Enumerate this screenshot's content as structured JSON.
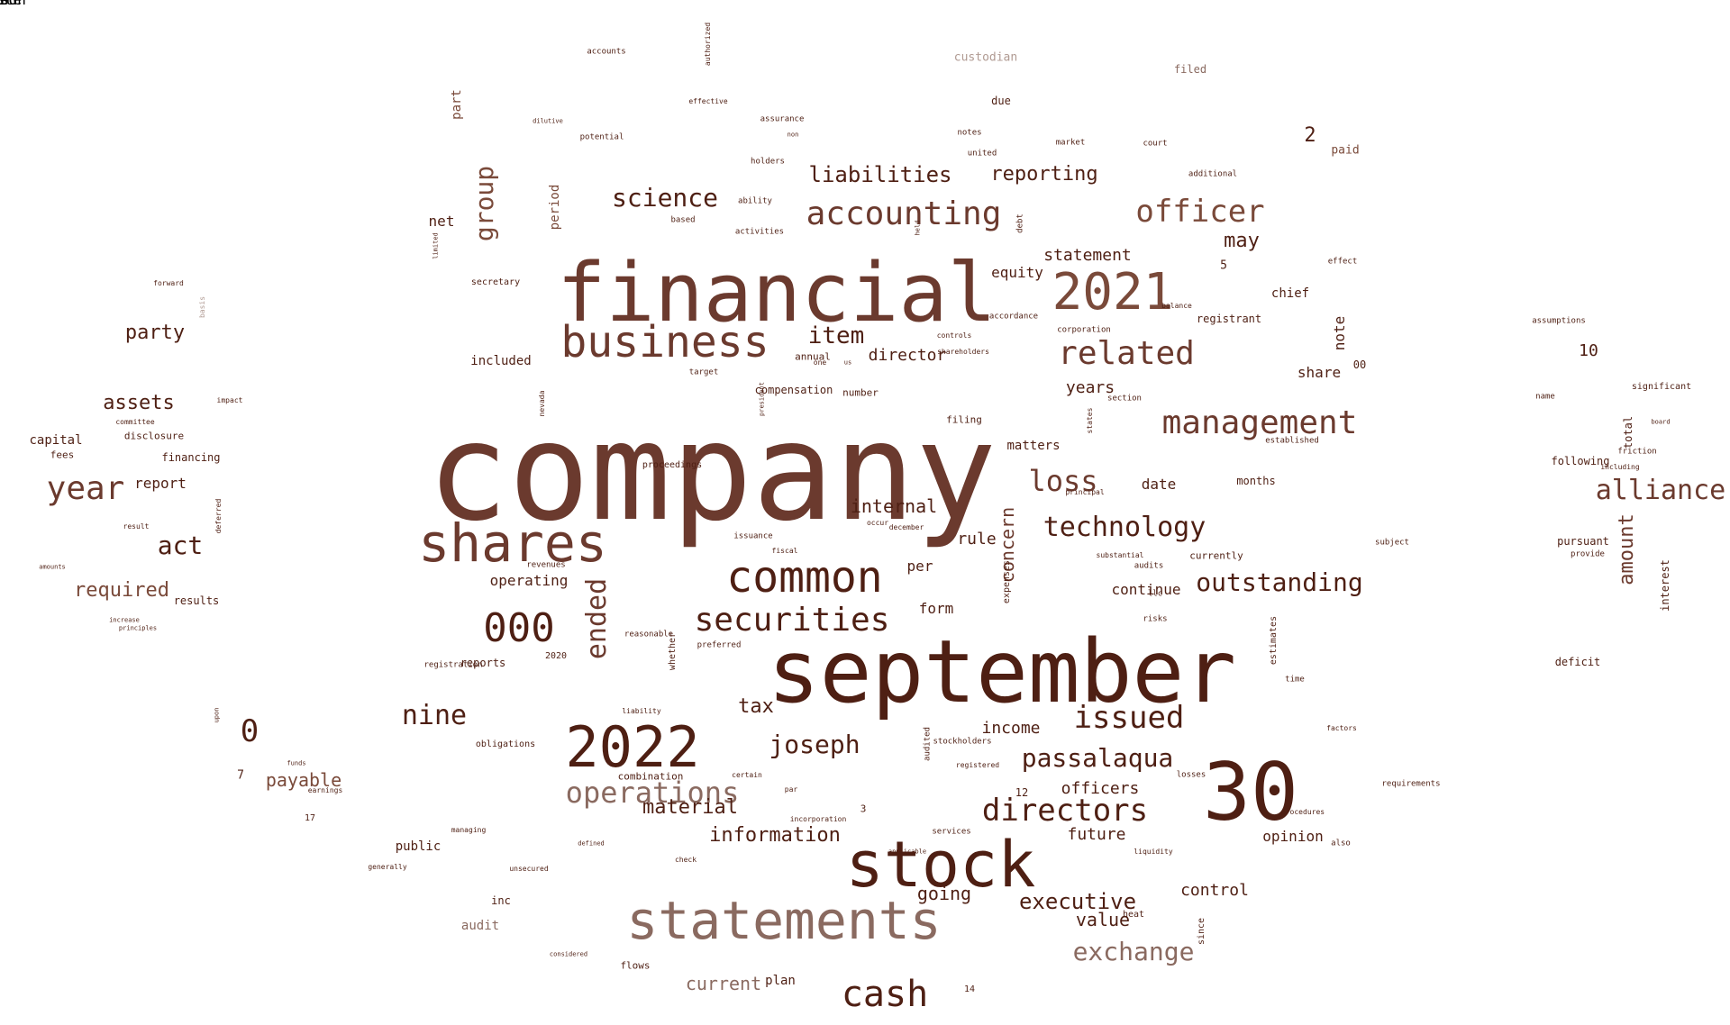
{
  "palette": {
    "dark": "#4e1f13",
    "mid": "#6b3a2e",
    "brown": "#7a4a3a",
    "light": "#8a6a60",
    "pale": "#b09a92"
  },
  "words": [
    {
      "text": "company",
      "vertical": false,
      "color": "mid"
    },
    {
      "text": "financial",
      "vertical": false,
      "color": "mid"
    },
    {
      "text": "september",
      "vertical": false,
      "color": "dark"
    },
    {
      "text": "30",
      "vertical": false,
      "color": "dark"
    },
    {
      "text": "stock",
      "vertical": false,
      "color": "dark"
    },
    {
      "text": "statements",
      "vertical": false,
      "color": "light"
    },
    {
      "text": "shares",
      "vertical": false,
      "color": "mid"
    },
    {
      "text": "2022",
      "vertical": false,
      "color": "dark"
    },
    {
      "text": "2021",
      "vertical": false,
      "color": "brown"
    },
    {
      "text": "business",
      "vertical": false,
      "color": "mid"
    },
    {
      "text": "common",
      "vertical": false,
      "color": "dark"
    },
    {
      "text": "000",
      "vertical": false,
      "color": "dark"
    },
    {
      "text": "securities",
      "vertical": false,
      "color": "dark"
    },
    {
      "text": "related",
      "vertical": false,
      "color": "mid"
    },
    {
      "text": "accounting",
      "vertical": false,
      "color": "mid"
    },
    {
      "text": "management",
      "vertical": false,
      "color": "mid"
    },
    {
      "text": "officer",
      "vertical": false,
      "color": "brown"
    },
    {
      "text": "cash",
      "vertical": false,
      "color": "dark"
    },
    {
      "text": "directors",
      "vertical": false,
      "color": "dark"
    },
    {
      "text": "operations",
      "vertical": false,
      "color": "light"
    },
    {
      "text": "year",
      "vertical": false,
      "color": "mid"
    },
    {
      "text": "alliance",
      "vertical": false,
      "color": "mid"
    },
    {
      "text": "technology",
      "vertical": false,
      "color": "dark"
    },
    {
      "text": "passalaqua",
      "vertical": false,
      "color": "dark"
    },
    {
      "text": "loss",
      "vertical": false,
      "color": "mid"
    },
    {
      "text": "issued",
      "vertical": false,
      "color": "dark"
    },
    {
      "text": "exchange",
      "vertical": false,
      "color": "light"
    },
    {
      "text": "outstanding",
      "vertical": false,
      "color": "dark"
    },
    {
      "text": "nine",
      "vertical": false,
      "color": "dark"
    },
    {
      "text": "joseph",
      "vertical": false,
      "color": "dark"
    },
    {
      "text": "science",
      "vertical": false,
      "color": "dark"
    },
    {
      "text": "item",
      "vertical": false,
      "color": "dark"
    },
    {
      "text": "ended",
      "vertical": true,
      "color": "mid"
    },
    {
      "text": "0",
      "vertical": false,
      "color": "dark"
    },
    {
      "text": "act",
      "vertical": false,
      "color": "dark"
    },
    {
      "text": "liabilities",
      "vertical": false,
      "color": "dark"
    },
    {
      "text": "reporting",
      "vertical": false,
      "color": "dark"
    },
    {
      "text": "information",
      "vertical": false,
      "color": "dark"
    },
    {
      "text": "material",
      "vertical": false,
      "color": "dark"
    },
    {
      "text": "executive",
      "vertical": false,
      "color": "dark"
    },
    {
      "text": "group",
      "vertical": true,
      "color": "brown"
    },
    {
      "text": "assets",
      "vertical": false,
      "color": "dark"
    },
    {
      "text": "party",
      "vertical": false,
      "color": "dark"
    },
    {
      "text": "may",
      "vertical": false,
      "color": "dark"
    },
    {
      "text": "internal",
      "vertical": false,
      "color": "dark"
    },
    {
      "text": "going",
      "vertical": false,
      "color": "dark"
    },
    {
      "text": "tax",
      "vertical": false,
      "color": "dark"
    },
    {
      "text": "future",
      "vertical": false,
      "color": "dark"
    },
    {
      "text": "control",
      "vertical": false,
      "color": "dark"
    },
    {
      "text": "required",
      "vertical": false,
      "color": "brown"
    },
    {
      "text": "payable",
      "vertical": false,
      "color": "brown"
    },
    {
      "text": "concern",
      "vertical": true,
      "color": "mid"
    },
    {
      "text": "amount",
      "vertical": true,
      "color": "mid"
    },
    {
      "text": "officers",
      "vertical": false,
      "color": "dark"
    },
    {
      "text": "value",
      "vertical": false,
      "color": "dark"
    },
    {
      "text": "statement",
      "vertical": false,
      "color": "dark"
    },
    {
      "text": "director",
      "vertical": false,
      "color": "dark"
    },
    {
      "text": "current",
      "vertical": false,
      "color": "light"
    },
    {
      "text": "income",
      "vertical": false,
      "color": "dark"
    },
    {
      "text": "opinion",
      "vertical": false,
      "color": "dark"
    },
    {
      "text": "years",
      "vertical": false,
      "color": "dark"
    },
    {
      "text": "rule",
      "vertical": false,
      "color": "dark"
    },
    {
      "text": "form",
      "vertical": false,
      "color": "dark"
    },
    {
      "text": "per",
      "vertical": false,
      "color": "dark"
    },
    {
      "text": "operating",
      "vertical": false,
      "color": "dark"
    },
    {
      "text": "continue",
      "vertical": false,
      "color": "dark"
    },
    {
      "text": "date",
      "vertical": false,
      "color": "dark"
    },
    {
      "text": "equity",
      "vertical": false,
      "color": "dark"
    },
    {
      "text": "share",
      "vertical": false,
      "color": "dark"
    },
    {
      "text": "note",
      "vertical": true,
      "color": "dark"
    },
    {
      "text": "2",
      "vertical": false,
      "color": "dark"
    },
    {
      "text": "10",
      "vertical": false,
      "color": "dark"
    },
    {
      "text": "chief",
      "vertical": false,
      "color": "dark"
    },
    {
      "text": "net",
      "vertical": false,
      "color": "dark"
    },
    {
      "text": "report",
      "vertical": false,
      "color": "dark"
    },
    {
      "text": "capital",
      "vertical": false,
      "color": "dark"
    },
    {
      "text": "included",
      "vertical": false,
      "color": "dark"
    },
    {
      "text": "period",
      "vertical": true,
      "color": "brown"
    },
    {
      "text": "matters",
      "vertical": false,
      "color": "dark"
    },
    {
      "text": "compensation",
      "vertical": false,
      "color": "dark"
    },
    {
      "text": "public",
      "vertical": false,
      "color": "dark"
    },
    {
      "text": "plan",
      "vertical": false,
      "color": "dark"
    },
    {
      "text": "audit",
      "vertical": false,
      "color": "light"
    },
    {
      "text": "reports",
      "vertical": false,
      "color": "dark"
    },
    {
      "text": "financing",
      "vertical": false,
      "color": "dark"
    },
    {
      "text": "results",
      "vertical": false,
      "color": "dark"
    },
    {
      "text": "paid",
      "vertical": false,
      "color": "brown"
    },
    {
      "text": "due",
      "vertical": false,
      "color": "dark"
    },
    {
      "text": "filed",
      "vertical": false,
      "color": "light"
    },
    {
      "text": "custodian",
      "vertical": false,
      "color": "pale"
    },
    {
      "text": "part",
      "vertical": true,
      "color": "brown"
    },
    {
      "text": "registrant",
      "vertical": false,
      "color": "dark"
    },
    {
      "text": "months",
      "vertical": false,
      "color": "dark"
    },
    {
      "text": "pursuant",
      "vertical": false,
      "color": "dark"
    },
    {
      "text": "deficit",
      "vertical": false,
      "color": "dark"
    },
    {
      "text": "interest",
      "vertical": true,
      "color": "dark"
    },
    {
      "text": "total",
      "vertical": true,
      "color": "dark"
    },
    {
      "text": "following",
      "vertical": false,
      "color": "dark"
    },
    {
      "text": "fees",
      "vertical": false,
      "color": "dark"
    },
    {
      "text": "disclosure",
      "vertical": false,
      "color": "dark"
    },
    {
      "text": "inc",
      "vertical": false,
      "color": "dark"
    },
    {
      "text": "flows",
      "vertical": false,
      "color": "dark"
    },
    {
      "text": "combination",
      "vertical": false,
      "color": "dark"
    },
    {
      "text": "number",
      "vertical": false,
      "color": "dark"
    },
    {
      "text": "12",
      "vertical": false,
      "color": "dark"
    },
    {
      "text": "7",
      "vertical": false,
      "color": "dark"
    },
    {
      "text": "5",
      "vertical": false,
      "color": "dark"
    },
    {
      "text": "00",
      "vertical": false,
      "color": "dark"
    },
    {
      "text": "3",
      "vertical": false,
      "color": "dark"
    },
    {
      "text": "14",
      "vertical": false,
      "color": "dark"
    },
    {
      "text": "17",
      "vertical": false,
      "color": "dark"
    },
    {
      "text": "2020",
      "vertical": false,
      "color": "dark"
    },
    {
      "text": "filing",
      "vertical": false,
      "color": "dark"
    },
    {
      "text": "annual",
      "vertical": false,
      "color": "dark"
    },
    {
      "text": "currently",
      "vertical": false,
      "color": "dark"
    },
    {
      "text": "expenses",
      "vertical": true,
      "color": "dark"
    },
    {
      "text": "estimates",
      "vertical": true,
      "color": "dark"
    },
    {
      "text": "since",
      "vertical": true,
      "color": "dark"
    },
    {
      "text": "whether",
      "vertical": true,
      "color": "dark"
    },
    {
      "text": "ability",
      "vertical": false,
      "color": "dark"
    },
    {
      "text": "activities",
      "vertical": false,
      "color": "dark"
    },
    {
      "text": "based",
      "vertical": false,
      "color": "dark"
    },
    {
      "text": "holders",
      "vertical": false,
      "color": "dark"
    },
    {
      "text": "potential",
      "vertical": false,
      "color": "dark"
    },
    {
      "text": "accounts",
      "vertical": false,
      "color": "dark"
    },
    {
      "text": "notes",
      "vertical": false,
      "color": "dark"
    },
    {
      "text": "united",
      "vertical": false,
      "color": "dark"
    },
    {
      "text": "market",
      "vertical": false,
      "color": "dark"
    },
    {
      "text": "court",
      "vertical": false,
      "color": "dark"
    },
    {
      "text": "additional",
      "vertical": false,
      "color": "dark"
    },
    {
      "text": "effect",
      "vertical": false,
      "color": "dark"
    },
    {
      "text": "secretary",
      "vertical": false,
      "color": "dark"
    },
    {
      "text": "accordance",
      "vertical": false,
      "color": "dark"
    },
    {
      "text": "controls",
      "vertical": false,
      "color": "dark"
    },
    {
      "text": "shareholders",
      "vertical": false,
      "color": "dark"
    },
    {
      "text": "established",
      "vertical": false,
      "color": "dark"
    },
    {
      "text": "principal",
      "vertical": false,
      "color": "dark"
    },
    {
      "text": "section",
      "vertical": false,
      "color": "dark"
    },
    {
      "text": "substantial",
      "vertical": false,
      "color": "dark"
    },
    {
      "text": "audits",
      "vertical": false,
      "color": "dark"
    },
    {
      "text": "llc",
      "vertical": false,
      "color": "dark"
    },
    {
      "text": "risks",
      "vertical": false,
      "color": "dark"
    },
    {
      "text": "revenues",
      "vertical": false,
      "color": "dark"
    },
    {
      "text": "reasonable",
      "vertical": false,
      "color": "dark"
    },
    {
      "text": "preferred",
      "vertical": false,
      "color": "dark"
    },
    {
      "text": "issuance",
      "vertical": false,
      "color": "dark"
    },
    {
      "text": "fiscal",
      "vertical": false,
      "color": "dark"
    },
    {
      "text": "occur",
      "vertical": false,
      "color": "dark"
    },
    {
      "text": "december",
      "vertical": false,
      "color": "dark"
    },
    {
      "text": "liability",
      "vertical": false,
      "color": "dark"
    },
    {
      "text": "obligations",
      "vertical": false,
      "color": "dark"
    },
    {
      "text": "certain",
      "vertical": false,
      "color": "dark"
    },
    {
      "text": "par",
      "vertical": false,
      "color": "dark"
    },
    {
      "text": "incorporation",
      "vertical": false,
      "color": "dark"
    },
    {
      "text": "stockholders",
      "vertical": false,
      "color": "dark"
    },
    {
      "text": "registered",
      "vertical": false,
      "color": "dark"
    },
    {
      "text": "services",
      "vertical": false,
      "color": "dark"
    },
    {
      "text": "losses",
      "vertical": false,
      "color": "dark"
    },
    {
      "text": "liquidity",
      "vertical": false,
      "color": "dark"
    },
    {
      "text": "procedures",
      "vertical": false,
      "color": "dark"
    },
    {
      "text": "also",
      "vertical": false,
      "color": "dark"
    },
    {
      "text": "factors",
      "vertical": false,
      "color": "dark"
    },
    {
      "text": "time",
      "vertical": false,
      "color": "dark"
    },
    {
      "text": "requirements",
      "vertical": false,
      "color": "dark"
    },
    {
      "text": "assumptions",
      "vertical": false,
      "color": "dark"
    },
    {
      "text": "name",
      "vertical": false,
      "color": "dark"
    },
    {
      "text": "provide",
      "vertical": false,
      "color": "dark"
    },
    {
      "text": "subject",
      "vertical": false,
      "color": "dark"
    },
    {
      "text": "friction",
      "vertical": false,
      "color": "dark"
    },
    {
      "text": "including",
      "vertical": false,
      "color": "dark"
    },
    {
      "text": "significant",
      "vertical": false,
      "color": "dark"
    },
    {
      "text": "board",
      "vertical": false,
      "color": "dark"
    },
    {
      "text": "forward",
      "vertical": false,
      "color": "dark"
    },
    {
      "text": "basis",
      "vertical": true,
      "color": "pale"
    },
    {
      "text": "impact",
      "vertical": false,
      "color": "dark"
    },
    {
      "text": "committee",
      "vertical": false,
      "color": "dark"
    },
    {
      "text": "amounts",
      "vertical": false,
      "color": "dark"
    },
    {
      "text": "result",
      "vertical": false,
      "color": "dark"
    },
    {
      "text": "increase",
      "vertical": false,
      "color": "dark"
    },
    {
      "text": "principles",
      "vertical": false,
      "color": "dark"
    },
    {
      "text": "funds",
      "vertical": false,
      "color": "dark"
    },
    {
      "text": "earnings",
      "vertical": false,
      "color": "dark"
    },
    {
      "text": "managing",
      "vertical": false,
      "color": "dark"
    },
    {
      "text": "generally",
      "vertical": false,
      "color": "dark"
    },
    {
      "text": "unsecured",
      "vertical": false,
      "color": "dark"
    },
    {
      "text": "considered",
      "vertical": false,
      "color": "dark"
    },
    {
      "text": "defined",
      "vertical": false,
      "color": "dark"
    },
    {
      "text": "check",
      "vertical": false,
      "color": "dark"
    },
    {
      "text": "applicable",
      "vertical": false,
      "color": "dark"
    },
    {
      "text": "effective",
      "vertical": false,
      "color": "dark"
    },
    {
      "text": "dilutive",
      "vertical": false,
      "color": "dark"
    },
    {
      "text": "assurance",
      "vertical": false,
      "color": "dark"
    },
    {
      "text": "proceedings",
      "vertical": false,
      "color": "dark"
    },
    {
      "text": "target",
      "vertical": false,
      "color": "dark"
    },
    {
      "text": "registration",
      "vertical": false,
      "color": "dark"
    },
    {
      "text": "corporation",
      "vertical": false,
      "color": "dark"
    },
    {
      "text": "audited",
      "vertical": true,
      "color": "dark"
    },
    {
      "text": "authorized",
      "vertical": true,
      "color": "dark"
    },
    {
      "text": "nevada",
      "vertical": true,
      "color": "dark"
    },
    {
      "text": "deferred",
      "vertical": true,
      "color": "dark"
    },
    {
      "text": "upon",
      "vertical": true,
      "color": "dark"
    },
    {
      "text": "states",
      "vertical": true,
      "color": "dark"
    },
    {
      "text": "debt",
      "vertical": true,
      "color": "dark"
    },
    {
      "text": "held",
      "vertical": true,
      "color": "dark"
    },
    {
      "text": "limited",
      "vertical": true,
      "color": "dark"
    },
    {
      "text": "president",
      "vertical": true,
      "color": "dark"
    },
    {
      "text": "non",
      "vertical": false,
      "color": "dark"
    },
    {
      "text": "one",
      "vertical": false,
      "color": "dark"
    },
    {
      "text": "us",
      "vertical": false,
      "color": "dark"
    },
    {
      "text": "heat",
      "vertical": false,
      "color": "dark"
    },
    {
      "text": "balance",
      "vertical": false,
      "color": "dark"
    },
    {
      "text": "used",
      "vertical": false,
      "color": "dark"
    },
    {
      "text": "person",
      "vertical": false,
      "color": "dark"
    },
    {
      "text": "state",
      "vertical": false,
      "color": "dark"
    },
    {
      "text": "13",
      "vertical": false,
      "color": "dark"
    },
    {
      "text": "c",
      "vertical": false,
      "color": "dark"
    },
    {
      "text": "6",
      "vertical": false,
      "color": "dark"
    }
  ]
}
